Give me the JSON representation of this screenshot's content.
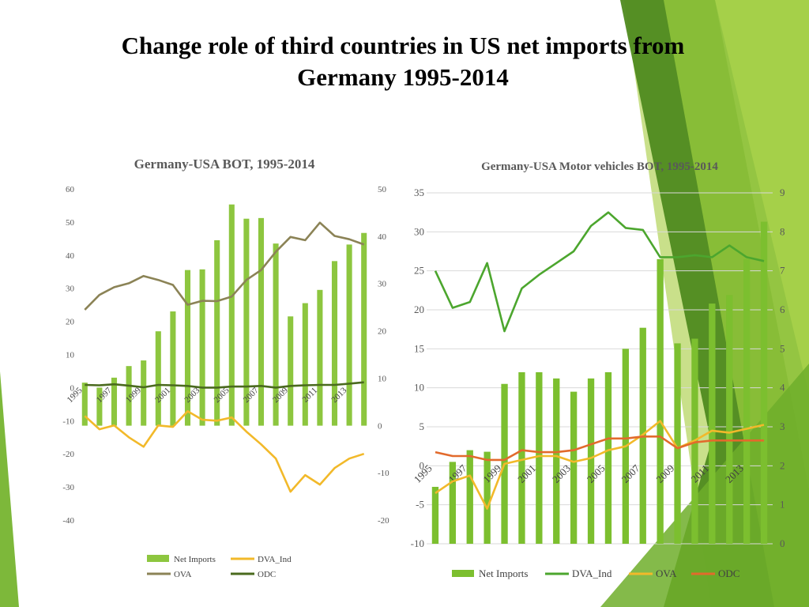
{
  "slide": {
    "title_line1": "Change role of third countries in US net imports from",
    "title_line2": "Germany 1995-2014"
  },
  "colors": {
    "net_imports": "#8dc63f",
    "net_imports_right": "#7cbf2f",
    "dva": "#f2b92a",
    "ova": "#8b8356",
    "odc": "#4a6a1e",
    "dva_right": "#4ca62e",
    "ova_right": "#f2b92a",
    "odc_right": "#e26a2c",
    "deco_dark": "#4f8a1f",
    "deco_light": "#9cc83c"
  },
  "chart_data": [
    {
      "type": "bar",
      "title": "Germany-USA BOT, 1995-2014",
      "categories": [
        "1995",
        "1996",
        "1997",
        "1998",
        "1999",
        "2000",
        "2001",
        "2002",
        "2003",
        "2004",
        "2005",
        "2006",
        "2007",
        "2008",
        "2009",
        "2010",
        "2011",
        "2012",
        "2013",
        "2014"
      ],
      "x_tick_labels": [
        "1995",
        "1997",
        "1999",
        "2001",
        "2003",
        "2005",
        "2007",
        "2009",
        "2011",
        "2013"
      ],
      "left_axis": {
        "ylim": [
          -40,
          60
        ],
        "ticks": [
          "60",
          "50",
          "40",
          "30",
          "20",
          "10",
          "0",
          "-10",
          "-20",
          "-30",
          "-40"
        ]
      },
      "right_axis": {
        "ylim": [
          -20,
          50
        ],
        "ticks": [
          "50",
          "40",
          "30",
          "20",
          "10",
          "0",
          "-10",
          "-20"
        ]
      },
      "series": [
        {
          "name": "Net Imports",
          "kind": "bar",
          "axis": "left",
          "values": [
            1.5,
            0,
            3,
            6.5,
            8.2,
            17,
            23,
            35.5,
            35.7,
            44.5,
            55.3,
            51,
            51.2,
            43.5,
            21.5,
            25.5,
            29.5,
            38.2,
            43.2,
            46.7
          ]
        },
        {
          "name": "DVA_Ind",
          "kind": "line",
          "axis": "right",
          "values": [
            2,
            -0.8,
            0,
            -2.5,
            -4.5,
            0,
            -0.3,
            3,
            1.2,
            1,
            1.7,
            -1.3,
            -4,
            -7,
            -14,
            -10.5,
            -12.5,
            -9,
            -7,
            -6
          ]
        },
        {
          "name": "OVA",
          "kind": "line",
          "axis": "left",
          "values": [
            23.5,
            28,
            30.3,
            31.5,
            33.7,
            32.5,
            31,
            25,
            26.2,
            26.1,
            27.5,
            32.5,
            35.5,
            41,
            45.5,
            44.5,
            49.8,
            45.8,
            44.8,
            43.2
          ]
        },
        {
          "name": "ODC",
          "kind": "line",
          "axis": "left",
          "values": [
            0.8,
            0.7,
            1,
            0.6,
            0.1,
            0.8,
            0.7,
            0.5,
            0,
            0,
            0.3,
            0.3,
            0.5,
            0,
            0.5,
            0.7,
            0.8,
            0.8,
            1.2,
            1.6
          ]
        }
      ],
      "legend": "bottom"
    },
    {
      "type": "bar",
      "title": "Germany-USA Motor vehicles BOT, 1995-2014",
      "categories": [
        "1995",
        "1996",
        "1997",
        "1998",
        "1999",
        "2000",
        "2001",
        "2002",
        "2003",
        "2004",
        "2005",
        "2006",
        "2007",
        "2008",
        "2009",
        "2010",
        "2011",
        "2012",
        "2013",
        "2014"
      ],
      "x_tick_labels": [
        "1995",
        "1997",
        "1999",
        "2001",
        "2003",
        "2005",
        "2007",
        "2009",
        "2011",
        "2013"
      ],
      "left_axis": {
        "ylim": [
          -10,
          35
        ],
        "ticks": [
          "35",
          "30",
          "25",
          "20",
          "15",
          "10",
          "5",
          "0",
          "-5",
          "-10"
        ]
      },
      "right_axis": {
        "ylim": [
          0,
          9
        ],
        "ticks": [
          "9",
          "8",
          "7",
          "6",
          "5",
          "4",
          "3",
          "2",
          "1",
          "0"
        ]
      },
      "series": [
        {
          "name": "Net Imports",
          "kind": "bar",
          "axis": "left",
          "values": [
            -2.7,
            0.5,
            2,
            1.8,
            10.5,
            12,
            12,
            11.2,
            9.5,
            11.2,
            12,
            15,
            17.7,
            26.5,
            15.7,
            16.3,
            20.8,
            21.9,
            26.5,
            31.3
          ]
        },
        {
          "name": "DVA_Ind",
          "kind": "line",
          "axis": "right",
          "values": [
            7,
            6.05,
            6.2,
            7.2,
            5.45,
            6.55,
            6.9,
            7.2,
            7.5,
            8.15,
            8.5,
            8.1,
            8.05,
            7.35,
            7.35,
            7.4,
            7.35,
            7.65,
            7.35,
            7.25
          ]
        },
        {
          "name": "OVA",
          "kind": "line",
          "axis": "right",
          "values": [
            1.3,
            1.6,
            1.75,
            0.9,
            2.05,
            2.15,
            2.25,
            2.25,
            2.1,
            2.2,
            2.4,
            2.5,
            2.8,
            3.15,
            2.45,
            2.65,
            2.9,
            2.85,
            2.95,
            3.05
          ]
        },
        {
          "name": "ODC",
          "kind": "line",
          "axis": "right",
          "values": [
            2.35,
            2.25,
            2.25,
            2.15,
            2.15,
            2.4,
            2.35,
            2.35,
            2.4,
            2.55,
            2.7,
            2.7,
            2.75,
            2.75,
            2.45,
            2.6,
            2.65,
            2.65,
            2.65,
            2.65
          ]
        }
      ],
      "legend": "bottom"
    }
  ]
}
